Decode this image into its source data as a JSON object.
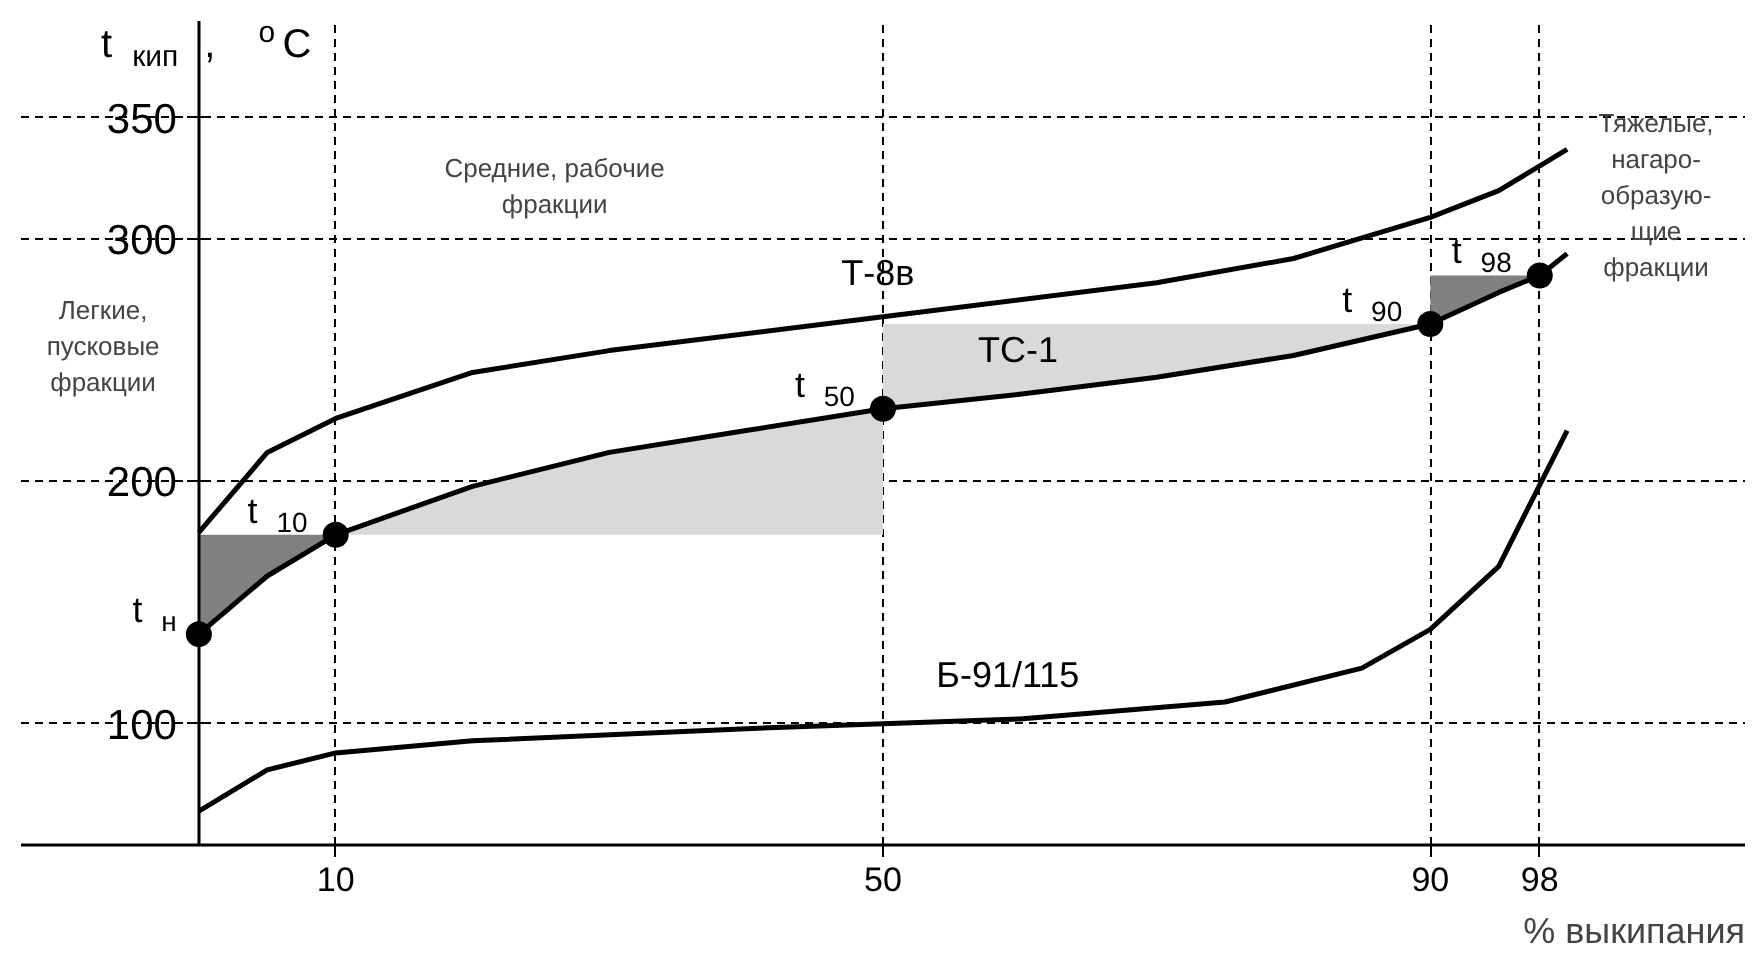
{
  "chart_data": {
    "type": "line",
    "xlabel": "% выкипания",
    "ylabel": "t$_{кип}$, $^{o}$C",
    "xlim": [
      -13,
      113
    ],
    "ylim": [
      50,
      390
    ],
    "xticks": [
      10,
      50,
      90,
      98
    ],
    "yticks": [
      100,
      200,
      300,
      350
    ],
    "grid": true,
    "line_style": "solid",
    "series": [
      {
        "type": "area",
        "color": "#808080",
        "x": [
          0,
          5,
          10,
          0
        ],
        "values": [
          137,
          161,
          178,
          178
        ]
      },
      {
        "type": "area",
        "color": "#d9d9d9",
        "x": [
          10,
          20,
          30,
          40,
          50,
          50
        ],
        "values": [
          178,
          198,
          212,
          221,
          230,
          178
        ]
      },
      {
        "type": "area",
        "color": "#d9d9d9",
        "x": [
          50,
          60,
          70,
          80,
          90,
          50
        ],
        "values": [
          230,
          236,
          243,
          252,
          265,
          265
        ]
      },
      {
        "type": "area",
        "color": "#808080",
        "x": [
          90,
          95,
          98,
          90
        ],
        "values": [
          265,
          278,
          285,
          285
        ]
      },
      {
        "name": "Т-8в",
        "color": "#000000",
        "x": [
          0,
          5,
          10,
          20,
          30,
          50,
          70,
          80,
          90,
          95,
          100
        ],
        "values": [
          179,
          212,
          226,
          245,
          254,
          268,
          282,
          292,
          309,
          320,
          337
        ]
      },
      {
        "name": "ТС-1",
        "color": "#000000",
        "x": [
          0,
          5,
          10,
          20,
          30,
          40,
          50,
          60,
          70,
          80,
          90,
          95,
          98,
          100
        ],
        "values": [
          137,
          161,
          178,
          198,
          212,
          221,
          230,
          236,
          243,
          252,
          265,
          278,
          285,
          294
        ]
      },
      {
        "name": "Б-91/115",
        "color": "#000000",
        "x": [
          0,
          5,
          10,
          20,
          40,
          60,
          75,
          85,
          90,
          95,
          100
        ],
        "values": [
          64,
          81,
          88,
          93,
          98,
          102,
          109,
          123,
          139,
          165,
          221
        ]
      },
      {
        "type": "scatter",
        "marker": "circle",
        "color": "#000000",
        "x": [
          0,
          10,
          50,
          90,
          98
        ],
        "values": [
          137,
          178,
          230,
          265,
          285
        ]
      }
    ],
    "annotations": [
      {
        "text": "t$_{н}$",
        "x": 0,
        "y": 137
      },
      {
        "text": "t$_{10}$",
        "x": 10,
        "y": 178
      },
      {
        "text": "t$_{50}$",
        "x": 50,
        "y": 230
      },
      {
        "text": "t$_{90}$",
        "x": 90,
        "y": 265
      },
      {
        "text": "t$_{98}$",
        "x": 98,
        "y": 285
      },
      "Легкие,\nпусковые\nфракции",
      "Средние, рабочие\nфракции",
      "Тяжелые,\nнагаро-\nобразую-\nщие\nфракции"
    ]
  }
}
